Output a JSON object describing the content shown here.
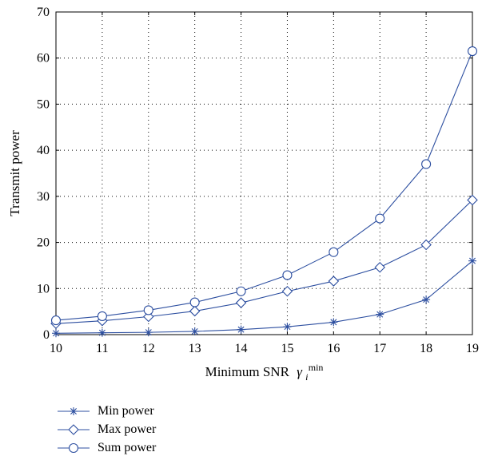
{
  "chart_data": {
    "type": "line",
    "x": [
      10,
      11,
      12,
      13,
      14,
      15,
      16,
      17,
      18,
      19
    ],
    "xlabel": "Minimum SNR",
    "xlabel_symbol": "γ",
    "xlabel_subscript": "i",
    "xlabel_superscript": "min",
    "ylabel": "Transmit power",
    "xlim": [
      10,
      19
    ],
    "ylim": [
      0,
      70
    ],
    "xticks": [
      10,
      11,
      12,
      13,
      14,
      15,
      16,
      17,
      18,
      19
    ],
    "yticks": [
      0,
      10,
      20,
      30,
      40,
      50,
      60,
      70
    ],
    "grid": true,
    "legend_position": "bottom-left, outside plot",
    "line_color": "#2d4fa0",
    "series": [
      {
        "name": "Min power",
        "marker": "asterisk",
        "values": [
          0.3,
          0.4,
          0.5,
          0.7,
          1.1,
          1.7,
          2.7,
          4.4,
          7.6,
          16.0
        ]
      },
      {
        "name": "Max power",
        "marker": "diamond",
        "values": [
          2.4,
          3.0,
          3.9,
          5.1,
          6.9,
          9.4,
          11.6,
          14.6,
          19.5,
          29.2
        ]
      },
      {
        "name": "Sum power",
        "marker": "circle",
        "values": [
          3.1,
          4.0,
          5.3,
          7.0,
          9.4,
          12.9,
          17.9,
          25.2,
          37.0,
          61.5
        ]
      }
    ]
  }
}
